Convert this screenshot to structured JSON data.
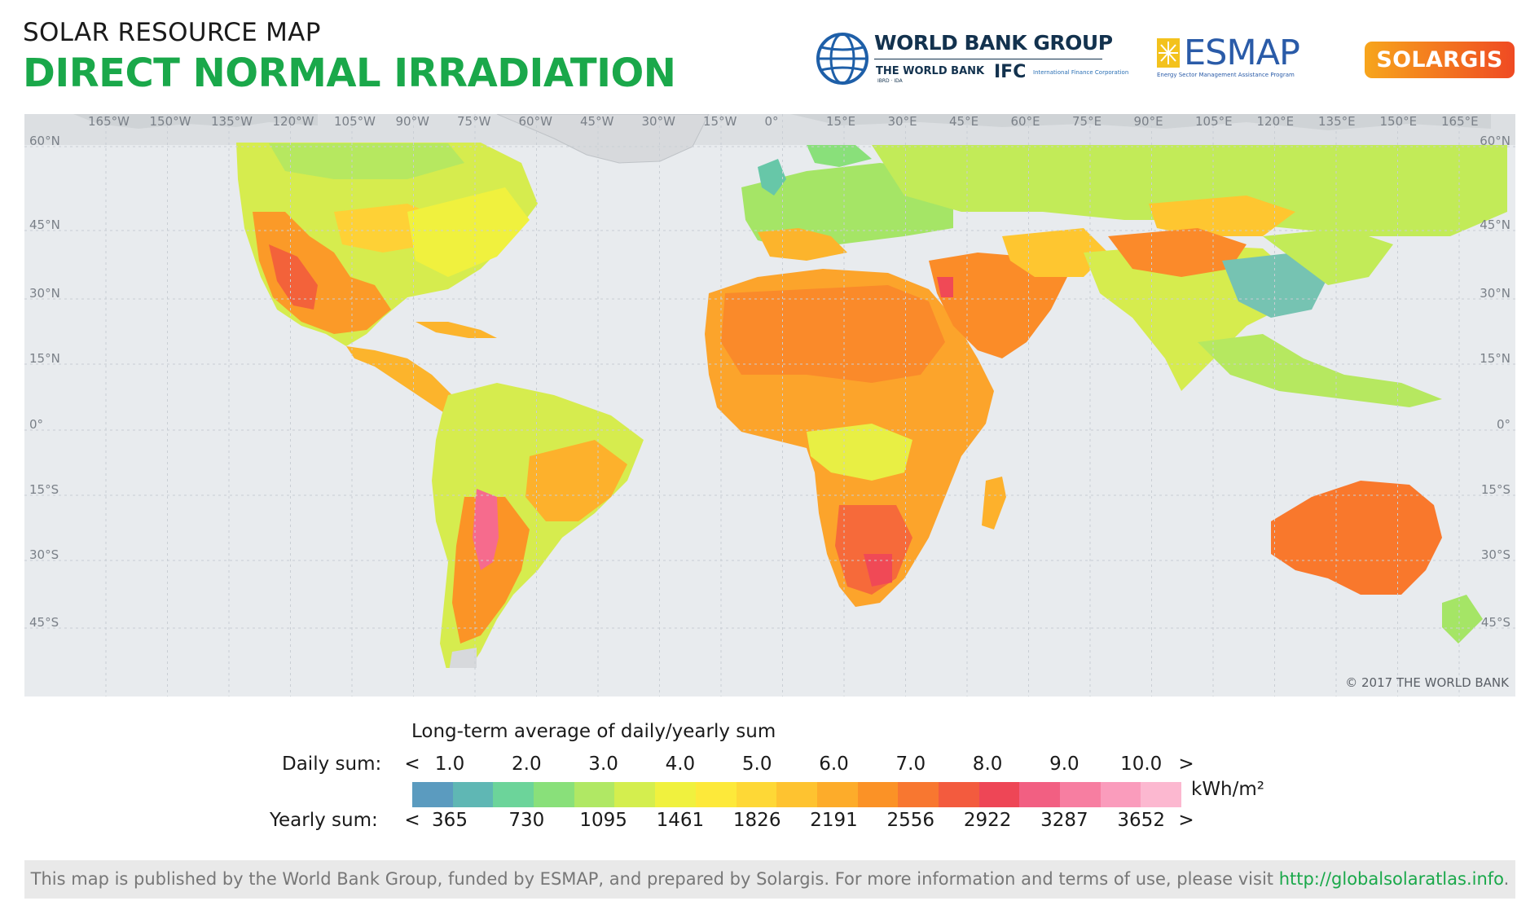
{
  "header": {
    "kicker": "SOLAR RESOURCE MAP",
    "title": "DIRECT NORMAL IRRADIATION"
  },
  "logos": {
    "world_bank_group": "WORLD BANK GROUP",
    "the_world_bank": "THE WORLD BANK",
    "ibrd_ida": "IBRD · IDA",
    "ifc": "IFC",
    "ifc_full": "International Finance Corporation",
    "esmap": "ESMAP",
    "esmap_full": "Energy Sector Management Assistance Program",
    "solargis": "SOLARGIS"
  },
  "map": {
    "longitudes": [
      "165°W",
      "150°W",
      "135°W",
      "120°W",
      "105°W",
      "90°W",
      "75°W",
      "60°W",
      "45°W",
      "30°W",
      "15°W",
      "0°",
      "15°E",
      "30°E",
      "45°E",
      "60°E",
      "75°E",
      "90°E",
      "105°E",
      "120°E",
      "135°E",
      "150°E",
      "165°E"
    ],
    "latitudes": [
      "60°N",
      "45°N",
      "30°N",
      "15°N",
      "0°",
      "15°S",
      "30°S",
      "45°S"
    ],
    "copyright": "© 2017 THE WORLD BANK",
    "colors": {
      "ocean": "#e8ebee",
      "graticule": "#c9ced4",
      "ice": "#d5d8db"
    }
  },
  "legend": {
    "caption": "Long-term average of daily/yearly sum",
    "daily_label": "Daily sum:",
    "yearly_label": "Yearly sum:",
    "less_than": "<",
    "greater_than": ">",
    "daily_ticks": [
      "1.0",
      "2.0",
      "3.0",
      "4.0",
      "5.0",
      "6.0",
      "7.0",
      "8.0",
      "9.0",
      "10.0"
    ],
    "yearly_ticks": [
      "365",
      "730",
      "1095",
      "1461",
      "1826",
      "2191",
      "2556",
      "2922",
      "3287",
      "3652"
    ],
    "unit": "kWh/m²",
    "colors": [
      "#5b9bbf",
      "#5fb7b4",
      "#6cd49a",
      "#89e07a",
      "#b0e864",
      "#d4ee4e",
      "#f0f13e",
      "#fde93a",
      "#fed836",
      "#fec330",
      "#fdac2a",
      "#fb9226",
      "#f87730",
      "#f35b3e",
      "#ee4656",
      "#f25f82",
      "#f77ea1",
      "#fa9cbc",
      "#fcb8d0"
    ]
  },
  "footer": {
    "text": "This map is published by the World Bank Group, funded by ESMAP, and prepared by Solargis. For more information and terms of use, please visit ",
    "link": "http://globalsolaratlas.info",
    "trailing": "."
  }
}
